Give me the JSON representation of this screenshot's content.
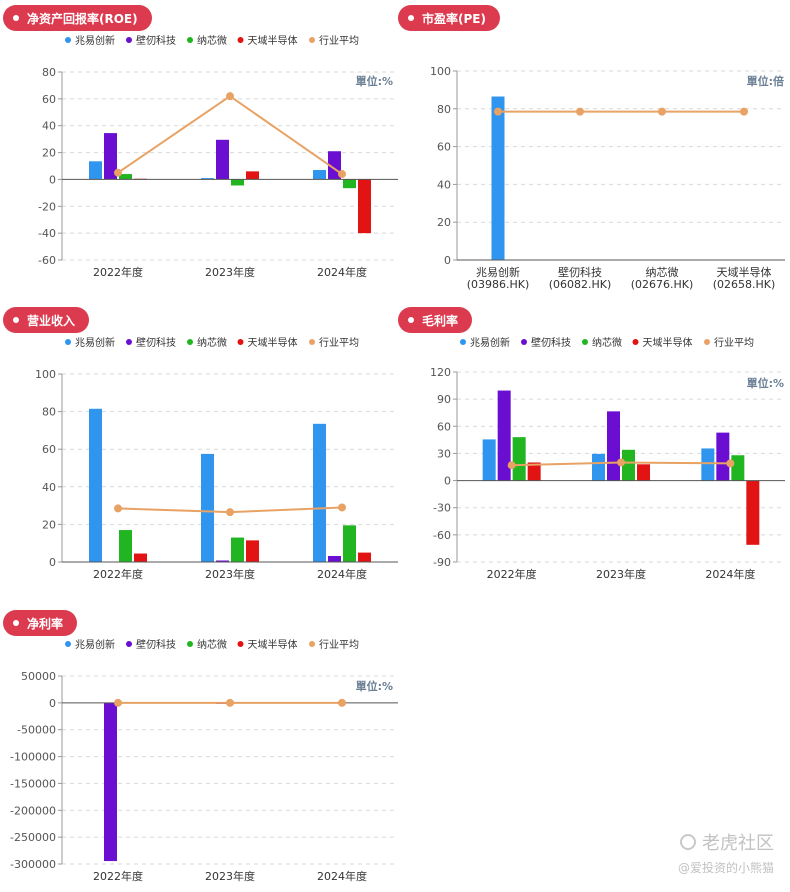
{
  "colors": {
    "series": [
      "#2f95ee",
      "#6a0fd1",
      "#21b521",
      "#e11313",
      "#e8a263"
    ],
    "pill": "#dc3a4e",
    "axis_text": "#555555",
    "unit_text": "#6b7f95"
  },
  "watermark": {
    "line1": "老虎社区",
    "line2": "@爱投资的小熊猫",
    "icon": "tiger-community-icon"
  },
  "charts": [
    {
      "id": "roe",
      "title": "净资产回报率(ROE)",
      "unit": "單位:%",
      "legend": [
        "兆易创新",
        "壁仞科技",
        "纳芯微",
        "天域半导体",
        "行业平均"
      ],
      "yticks": [
        "80",
        "60",
        "40",
        "20",
        "0",
        "-20",
        "-40",
        "-60"
      ],
      "xticks": [
        [
          "2022年度"
        ],
        [
          "2023年度"
        ],
        [
          "2024年度"
        ]
      ]
    },
    {
      "id": "pe",
      "title": "市盈率(PE)",
      "unit": "單位:倍",
      "legend": [],
      "yticks": [
        "100",
        "80",
        "60",
        "40",
        "20",
        "0"
      ],
      "xticks": [
        [
          "兆易创新",
          "(03986.HK)"
        ],
        [
          "壁仞科技",
          "(06082.HK)"
        ],
        [
          "纳芯微",
          "(02676.HK)"
        ],
        [
          "天域半导体",
          "(02658.HK)"
        ]
      ]
    },
    {
      "id": "revenue",
      "title": "营业收入",
      "unit": "",
      "legend": [
        "兆易创新",
        "壁仞科技",
        "纳芯微",
        "天域半导体",
        "行业平均"
      ],
      "yticks": [
        "100",
        "80",
        "60",
        "40",
        "20",
        "0"
      ],
      "xticks": [
        [
          "2022年度"
        ],
        [
          "2023年度"
        ],
        [
          "2024年度"
        ]
      ]
    },
    {
      "id": "gross",
      "title": "毛利率",
      "unit": "單位:%",
      "legend": [
        "兆易创新",
        "壁仞科技",
        "纳芯微",
        "天域半导体",
        "行业平均"
      ],
      "yticks": [
        "120",
        "90",
        "60",
        "30",
        "0",
        "-30",
        "-60",
        "-90"
      ],
      "xticks": [
        [
          "2022年度"
        ],
        [
          "2023年度"
        ],
        [
          "2024年度"
        ]
      ]
    },
    {
      "id": "net",
      "title": "净利率",
      "unit": "單位:%",
      "legend": [
        "兆易创新",
        "壁仞科技",
        "纳芯微",
        "天域半导体",
        "行业平均"
      ],
      "yticks": [
        "50000",
        "0",
        "-50000",
        "-100000",
        "-150000",
        "-200000",
        "-250000",
        "-300000"
      ],
      "xticks": [
        [
          "2022年度"
        ],
        [
          "2023年度"
        ],
        [
          "2024年度"
        ]
      ]
    }
  ],
  "chart_data": [
    {
      "type": "bar",
      "title": "净资产回报率(ROE)",
      "unit": "%",
      "categories": [
        "2022年度",
        "2023年度",
        "2024年度"
      ],
      "ylim": [
        -60,
        80
      ],
      "grid": true,
      "legend_position": "top",
      "series": [
        {
          "name": "兆易创新",
          "values": [
            13.5,
            1.0,
            7.0
          ]
        },
        {
          "name": "壁仞科技",
          "values": [
            34.5,
            29.5,
            21.0
          ]
        },
        {
          "name": "纳芯微",
          "values": [
            4.0,
            -4.5,
            -6.5
          ]
        },
        {
          "name": "天域半导体",
          "values": [
            0.5,
            6.0,
            -40.0
          ]
        }
      ],
      "line": {
        "name": "行业平均",
        "values": [
          5.0,
          62.0,
          4.0
        ]
      }
    },
    {
      "type": "bar",
      "title": "市盈率(PE)",
      "unit": "倍",
      "categories": [
        "兆易创新 (03986.HK)",
        "壁仞科技 (06082.HK)",
        "纳芯微 (02676.HK)",
        "天域半导体 (02658.HK)"
      ],
      "ylim": [
        0,
        100
      ],
      "grid": true,
      "series": [
        {
          "name": "市盈率",
          "values": [
            86.5,
            0,
            0,
            0
          ]
        }
      ],
      "line": {
        "name": "行业平均",
        "values": [
          78.5,
          78.5,
          78.5,
          78.5
        ]
      }
    },
    {
      "type": "bar",
      "title": "营业收入",
      "categories": [
        "2022年度",
        "2023年度",
        "2024年度"
      ],
      "ylim": [
        0,
        100
      ],
      "grid": true,
      "legend_position": "top",
      "series": [
        {
          "name": "兆易创新",
          "values": [
            81.5,
            57.5,
            73.5
          ]
        },
        {
          "name": "壁仞科技",
          "values": [
            0,
            0.8,
            3.2
          ]
        },
        {
          "name": "纳芯微",
          "values": [
            17.0,
            13.0,
            19.5
          ]
        },
        {
          "name": "天域半导体",
          "values": [
            4.5,
            11.5,
            5.0
          ]
        }
      ],
      "line": {
        "name": "行业平均",
        "values": [
          28.5,
          26.5,
          29.0
        ]
      }
    },
    {
      "type": "bar",
      "title": "毛利率",
      "unit": "%",
      "categories": [
        "2022年度",
        "2023年度",
        "2024年度"
      ],
      "ylim": [
        -90,
        120
      ],
      "grid": true,
      "legend_position": "top",
      "series": [
        {
          "name": "兆易创新",
          "values": [
            45.5,
            29.5,
            35.5
          ]
        },
        {
          "name": "壁仞科技",
          "values": [
            99.5,
            76.5,
            53.0
          ]
        },
        {
          "name": "纳芯微",
          "values": [
            48.0,
            34.0,
            28.0
          ]
        },
        {
          "name": "天域半导体",
          "values": [
            20.0,
            18.0,
            -71.0
          ]
        }
      ],
      "line": {
        "name": "行业平均",
        "values": [
          17.0,
          20.0,
          19.0
        ]
      }
    },
    {
      "type": "bar",
      "title": "净利率",
      "unit": "%",
      "categories": [
        "2022年度",
        "2023年度",
        "2024年度"
      ],
      "ylim": [
        -300000,
        50000
      ],
      "grid": true,
      "legend_position": "top",
      "series": [
        {
          "name": "兆易创新",
          "values": [
            0,
            0,
            0
          ]
        },
        {
          "name": "壁仞科技",
          "values": [
            -294500,
            -2000,
            0
          ]
        },
        {
          "name": "纳芯微",
          "values": [
            0,
            0,
            0
          ]
        },
        {
          "name": "天域半导体",
          "values": [
            0,
            0,
            0
          ]
        }
      ],
      "line": {
        "name": "行业平均",
        "values": [
          0,
          0,
          0
        ]
      }
    }
  ]
}
